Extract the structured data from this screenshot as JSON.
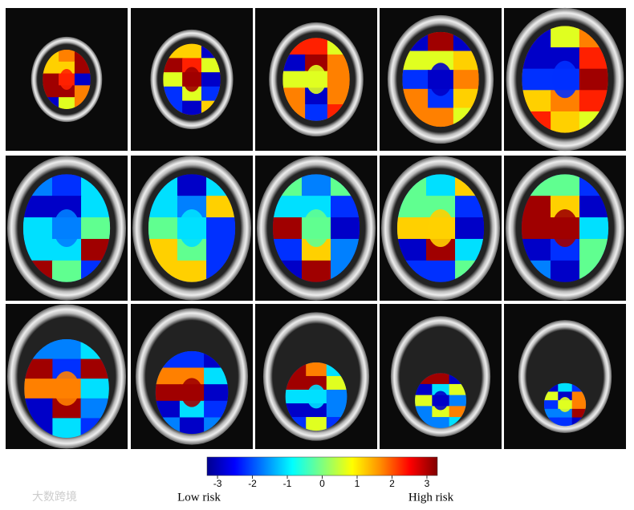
{
  "figure": {
    "panel_rows": 3,
    "panel_cols": 5
  },
  "colorbar": {
    "lim": [
      -3.3,
      3.3
    ],
    "ticks": [
      -3,
      -2,
      -1,
      0,
      1,
      2,
      3
    ],
    "low_label": "Low risk",
    "high_label": "High risk"
  },
  "watermark": "大数跨境"
}
